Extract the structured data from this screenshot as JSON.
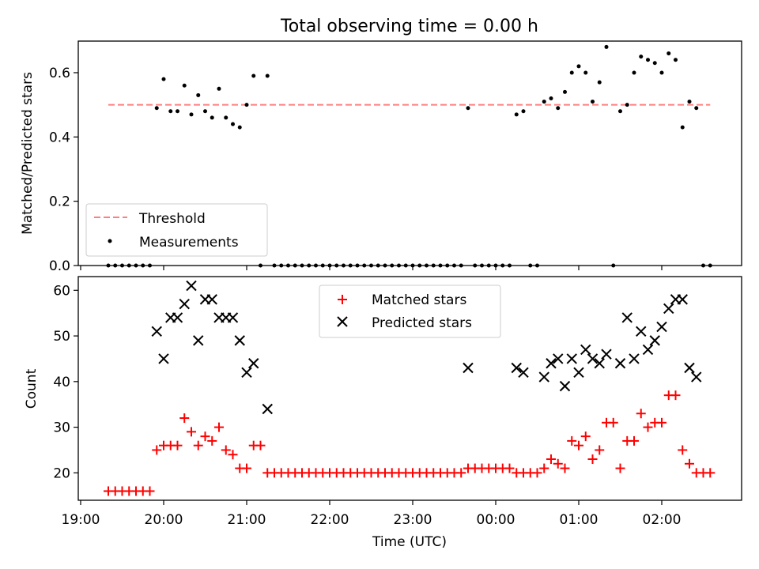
{
  "title": "Total observing time = 0.00 h",
  "chart_data": [
    {
      "type": "scatter",
      "ylabel": "Matched/Predicted stars",
      "ylim": [
        0.0,
        0.7
      ],
      "yticks": [
        "0.0",
        "0.2",
        "0.4",
        "0.6"
      ],
      "x_tick_labels_shown": false,
      "threshold": {
        "name": "Threshold",
        "value": 0.5,
        "x_range": [
          "19:20",
          "02:35"
        ],
        "color": "#ff7f7f",
        "style": "dashed"
      },
      "legend": {
        "placement": "lower-left",
        "entries": [
          "Threshold",
          "Measurements"
        ]
      },
      "series": [
        {
          "name": "Measurements",
          "color": "#000000",
          "marker": "dot",
          "points": [
            [
              "19:20",
              0
            ],
            [
              "19:25",
              0
            ],
            [
              "19:30",
              0
            ],
            [
              "19:35",
              0
            ],
            [
              "19:40",
              0
            ],
            [
              "19:45",
              0
            ],
            [
              "19:50",
              0
            ],
            [
              "19:55",
              0.49
            ],
            [
              "20:00",
              0.58
            ],
            [
              "20:05",
              0.48
            ],
            [
              "20:10",
              0.48
            ],
            [
              "20:15",
              0.56
            ],
            [
              "20:20",
              0.47
            ],
            [
              "20:25",
              0.53
            ],
            [
              "20:30",
              0.48
            ],
            [
              "20:35",
              0.46
            ],
            [
              "20:40",
              0.55
            ],
            [
              "20:45",
              0.46
            ],
            [
              "20:50",
              0.44
            ],
            [
              "20:55",
              0.43
            ],
            [
              "21:00",
              0.5
            ],
            [
              "21:05",
              0.59
            ],
            [
              "21:10",
              0
            ],
            [
              "21:15",
              0.59
            ],
            [
              "21:20",
              0
            ],
            [
              "21:25",
              0
            ],
            [
              "21:30",
              0
            ],
            [
              "21:35",
              0
            ],
            [
              "21:40",
              0
            ],
            [
              "21:45",
              0
            ],
            [
              "21:50",
              0
            ],
            [
              "21:55",
              0
            ],
            [
              "22:00",
              0
            ],
            [
              "22:05",
              0
            ],
            [
              "22:10",
              0
            ],
            [
              "22:15",
              0
            ],
            [
              "22:20",
              0
            ],
            [
              "22:25",
              0
            ],
            [
              "22:30",
              0
            ],
            [
              "22:35",
              0
            ],
            [
              "22:40",
              0
            ],
            [
              "22:45",
              0
            ],
            [
              "22:50",
              0
            ],
            [
              "22:55",
              0
            ],
            [
              "23:00",
              0
            ],
            [
              "23:05",
              0
            ],
            [
              "23:10",
              0
            ],
            [
              "23:15",
              0
            ],
            [
              "23:20",
              0
            ],
            [
              "23:25",
              0
            ],
            [
              "23:30",
              0
            ],
            [
              "23:35",
              0
            ],
            [
              "23:40",
              0.49
            ],
            [
              "23:45",
              0
            ],
            [
              "23:50",
              0
            ],
            [
              "23:55",
              0
            ],
            [
              "00:00",
              0
            ],
            [
              "00:05",
              0
            ],
            [
              "00:10",
              0
            ],
            [
              "00:15",
              0.47
            ],
            [
              "00:20",
              0.48
            ],
            [
              "00:25",
              0
            ],
            [
              "00:30",
              0
            ],
            [
              "00:35",
              0.51
            ],
            [
              "00:40",
              0.52
            ],
            [
              "00:45",
              0.49
            ],
            [
              "00:50",
              0.54
            ],
            [
              "00:55",
              0.6
            ],
            [
              "01:00",
              0.62
            ],
            [
              "01:05",
              0.6
            ],
            [
              "01:10",
              0.51
            ],
            [
              "01:15",
              0.57
            ],
            [
              "01:20",
              0.68
            ],
            [
              "01:25",
              0
            ],
            [
              "01:30",
              0.48
            ],
            [
              "01:35",
              0.5
            ],
            [
              "01:40",
              0.6
            ],
            [
              "01:45",
              0.65
            ],
            [
              "01:50",
              0.64
            ],
            [
              "01:55",
              0.63
            ],
            [
              "02:00",
              0.6
            ],
            [
              "02:05",
              0.66
            ],
            [
              "02:10",
              0.64
            ],
            [
              "02:15",
              0.43
            ],
            [
              "02:20",
              0.51
            ],
            [
              "02:25",
              0.49
            ],
            [
              "02:30",
              0
            ],
            [
              "02:35",
              0
            ]
          ]
        }
      ]
    },
    {
      "type": "scatter",
      "xlabel": "Time (UTC)",
      "ylabel": "Count",
      "ylim": [
        14,
        63
      ],
      "yticks": [
        "20",
        "30",
        "40",
        "50",
        "60"
      ],
      "xticks": [
        "19:00",
        "20:00",
        "21:00",
        "22:00",
        "23:00",
        "00:00",
        "01:00",
        "02:00"
      ],
      "legend": {
        "placement": "upper-center",
        "entries": [
          "Matched stars",
          "Predicted stars"
        ]
      },
      "series": [
        {
          "name": "Matched stars",
          "color": "#ff0000",
          "marker": "plus",
          "points": [
            [
              "19:20",
              16
            ],
            [
              "19:25",
              16
            ],
            [
              "19:30",
              16
            ],
            [
              "19:35",
              16
            ],
            [
              "19:40",
              16
            ],
            [
              "19:45",
              16
            ],
            [
              "19:50",
              16
            ],
            [
              "19:55",
              25
            ],
            [
              "20:00",
              26
            ],
            [
              "20:05",
              26
            ],
            [
              "20:10",
              26
            ],
            [
              "20:15",
              32
            ],
            [
              "20:20",
              29
            ],
            [
              "20:25",
              26
            ],
            [
              "20:30",
              28
            ],
            [
              "20:35",
              27
            ],
            [
              "20:40",
              30
            ],
            [
              "20:45",
              25
            ],
            [
              "20:50",
              24
            ],
            [
              "20:55",
              21
            ],
            [
              "21:00",
              21
            ],
            [
              "21:05",
              26
            ],
            [
              "21:10",
              26
            ],
            [
              "21:15",
              20
            ],
            [
              "21:20",
              20
            ],
            [
              "21:25",
              20
            ],
            [
              "21:30",
              20
            ],
            [
              "21:35",
              20
            ],
            [
              "21:40",
              20
            ],
            [
              "21:45",
              20
            ],
            [
              "21:50",
              20
            ],
            [
              "21:55",
              20
            ],
            [
              "22:00",
              20
            ],
            [
              "22:05",
              20
            ],
            [
              "22:10",
              20
            ],
            [
              "22:15",
              20
            ],
            [
              "22:20",
              20
            ],
            [
              "22:25",
              20
            ],
            [
              "22:30",
              20
            ],
            [
              "22:35",
              20
            ],
            [
              "22:40",
              20
            ],
            [
              "22:45",
              20
            ],
            [
              "22:50",
              20
            ],
            [
              "22:55",
              20
            ],
            [
              "23:00",
              20
            ],
            [
              "23:05",
              20
            ],
            [
              "23:10",
              20
            ],
            [
              "23:15",
              20
            ],
            [
              "23:20",
              20
            ],
            [
              "23:25",
              20
            ],
            [
              "23:30",
              20
            ],
            [
              "23:35",
              20
            ],
            [
              "23:40",
              21
            ],
            [
              "23:45",
              21
            ],
            [
              "23:50",
              21
            ],
            [
              "23:55",
              21
            ],
            [
              "00:00",
              21
            ],
            [
              "00:05",
              21
            ],
            [
              "00:10",
              21
            ],
            [
              "00:15",
              20
            ],
            [
              "00:20",
              20
            ],
            [
              "00:25",
              20
            ],
            [
              "00:30",
              20
            ],
            [
              "00:35",
              21
            ],
            [
              "00:40",
              23
            ],
            [
              "00:45",
              22
            ],
            [
              "00:50",
              21
            ],
            [
              "00:55",
              27
            ],
            [
              "01:00",
              26
            ],
            [
              "01:05",
              28
            ],
            [
              "01:10",
              23
            ],
            [
              "01:15",
              25
            ],
            [
              "01:20",
              31
            ],
            [
              "01:25",
              31
            ],
            [
              "01:30",
              21
            ],
            [
              "01:35",
              27
            ],
            [
              "01:40",
              27
            ],
            [
              "01:45",
              33
            ],
            [
              "01:50",
              30
            ],
            [
              "01:55",
              31
            ],
            [
              "02:00",
              31
            ],
            [
              "02:05",
              37
            ],
            [
              "02:10",
              37
            ],
            [
              "02:15",
              25
            ],
            [
              "02:20",
              22
            ],
            [
              "02:25",
              20
            ],
            [
              "02:30",
              20
            ],
            [
              "02:35",
              20
            ]
          ]
        },
        {
          "name": "Predicted stars",
          "color": "#000000",
          "marker": "x",
          "points": [
            [
              "19:55",
              51
            ],
            [
              "20:00",
              45
            ],
            [
              "20:05",
              54
            ],
            [
              "20:10",
              54
            ],
            [
              "20:15",
              57
            ],
            [
              "20:20",
              61
            ],
            [
              "20:25",
              49
            ],
            [
              "20:30",
              58
            ],
            [
              "20:35",
              58
            ],
            [
              "20:40",
              54
            ],
            [
              "20:45",
              54
            ],
            [
              "20:50",
              54
            ],
            [
              "20:55",
              49
            ],
            [
              "21:00",
              42
            ],
            [
              "21:05",
              44
            ],
            [
              "21:15",
              34
            ],
            [
              "23:40",
              43
            ],
            [
              "00:15",
              43
            ],
            [
              "00:20",
              42
            ],
            [
              "00:35",
              41
            ],
            [
              "00:40",
              44
            ],
            [
              "00:45",
              45
            ],
            [
              "00:50",
              39
            ],
            [
              "00:55",
              45
            ],
            [
              "01:00",
              42
            ],
            [
              "01:05",
              47
            ],
            [
              "01:10",
              45
            ],
            [
              "01:15",
              44
            ],
            [
              "01:20",
              46
            ],
            [
              "01:30",
              44
            ],
            [
              "01:35",
              54
            ],
            [
              "01:40",
              45
            ],
            [
              "01:45",
              51
            ],
            [
              "01:50",
              47
            ],
            [
              "01:55",
              49
            ],
            [
              "02:00",
              52
            ],
            [
              "02:05",
              56
            ],
            [
              "02:10",
              58
            ],
            [
              "02:15",
              58
            ],
            [
              "02:20",
              43
            ],
            [
              "02:25",
              41
            ]
          ]
        }
      ]
    }
  ]
}
